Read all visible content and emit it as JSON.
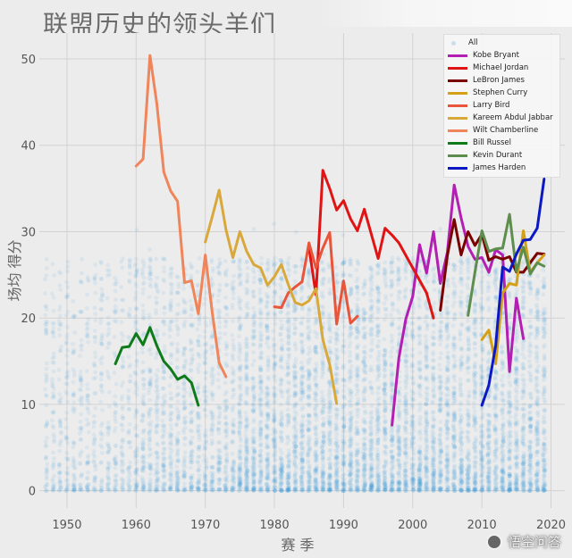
{
  "page": {
    "title": "联盟历史的领头羊们"
  },
  "watermark": {
    "text": "悟空问答"
  },
  "chart_data": {
    "type": "scatter",
    "title": "联盟历史的领头羊们",
    "xlabel": "赛 季",
    "ylabel": "场均 得分",
    "xlim": [
      1946,
      2022
    ],
    "ylim": [
      -2,
      53
    ],
    "xticks": [
      1950,
      1960,
      1970,
      1980,
      1990,
      2000,
      2010,
      2020
    ],
    "yticks": [
      0,
      10,
      20,
      30,
      40,
      50
    ],
    "grid": true,
    "legend_position": "top-right",
    "background_points": {
      "name": "All",
      "color": "#3a9ad9",
      "description": "individual player seasons, dense cloud from 0 to ~30 ppg, 1947–2019"
    },
    "series": [
      {
        "name": "Kobe Bryant",
        "color": "#b31eb3",
        "x": [
          1997,
          1998,
          1999,
          2000,
          2001,
          2002,
          2003,
          2004,
          2005,
          2006,
          2007,
          2008,
          2009,
          2010,
          2011,
          2012,
          2013,
          2014,
          2015,
          2016
        ],
        "y": [
          7.6,
          15.4,
          19.9,
          22.5,
          28.5,
          25.2,
          30.0,
          24.0,
          27.6,
          35.4,
          31.6,
          28.3,
          26.8,
          27.0,
          25.3,
          27.9,
          27.3,
          13.8,
          22.3,
          17.6
        ]
      },
      {
        "name": "Michael Jordan",
        "color": "#e01414",
        "x": [
          1985,
          1986,
          1987,
          1988,
          1989,
          1990,
          1991,
          1992,
          1993,
          1995,
          1996,
          1997,
          1998,
          2002,
          2003
        ],
        "y": [
          28.2,
          22.7,
          37.1,
          35.0,
          32.5,
          33.6,
          31.5,
          30.1,
          32.6,
          26.9,
          30.4,
          29.6,
          28.7,
          22.9,
          20.0
        ]
      },
      {
        "name": "LeBron James",
        "color": "#7a0000",
        "x": [
          2004,
          2005,
          2006,
          2007,
          2008,
          2009,
          2010,
          2011,
          2012,
          2013,
          2014,
          2015,
          2016,
          2017,
          2018,
          2019
        ],
        "y": [
          20.9,
          27.2,
          31.4,
          27.3,
          30.0,
          28.4,
          29.7,
          26.7,
          27.1,
          26.8,
          27.1,
          25.3,
          25.3,
          26.4,
          27.5,
          27.4
        ]
      },
      {
        "name": "Stephen Curry",
        "color": "#d4a018",
        "x": [
          2010,
          2011,
          2012,
          2013,
          2014,
          2015,
          2016,
          2017,
          2018,
          2019
        ],
        "y": [
          17.5,
          18.6,
          14.7,
          22.9,
          24.0,
          23.8,
          30.1,
          25.3,
          26.4,
          27.3
        ]
      },
      {
        "name": "Larry Bird",
        "color": "#e8553a",
        "x": [
          1980,
          1981,
          1982,
          1983,
          1984,
          1985,
          1986,
          1987,
          1988,
          1989,
          1990,
          1991,
          1992
        ],
        "y": [
          21.3,
          21.2,
          22.9,
          23.6,
          24.2,
          28.7,
          25.8,
          28.1,
          29.9,
          19.3,
          24.3,
          19.4,
          20.2
        ]
      },
      {
        "name": "Kareem Abdul Jabbar",
        "color": "#d9a83a",
        "x": [
          1970,
          1971,
          1972,
          1973,
          1974,
          1975,
          1976,
          1977,
          1978,
          1979,
          1980,
          1981,
          1982,
          1983,
          1984,
          1985,
          1986,
          1987,
          1988,
          1989
        ],
        "y": [
          28.8,
          31.7,
          34.8,
          30.2,
          27.0,
          30.0,
          27.7,
          26.2,
          25.8,
          23.8,
          24.8,
          26.2,
          23.9,
          21.8,
          21.5,
          22.0,
          23.4,
          17.5,
          14.6,
          10.1
        ]
      },
      {
        "name": "Wilt Chamberline",
        "color": "#f0845a",
        "x": [
          1960,
          1961,
          1962,
          1963,
          1964,
          1965,
          1966,
          1967,
          1968,
          1969,
          1970,
          1971,
          1972,
          1973
        ],
        "y": [
          37.6,
          38.4,
          50.4,
          44.8,
          36.9,
          34.7,
          33.5,
          24.1,
          24.3,
          20.5,
          27.3,
          20.7,
          14.8,
          13.2
        ]
      },
      {
        "name": "Bill Russel",
        "color": "#0f7a1a",
        "x": [
          1957,
          1958,
          1959,
          1960,
          1961,
          1962,
          1963,
          1964,
          1965,
          1966,
          1967,
          1968,
          1969
        ],
        "y": [
          14.7,
          16.6,
          16.7,
          18.2,
          16.9,
          18.9,
          16.8,
          15.0,
          14.1,
          12.9,
          13.3,
          12.5,
          9.9
        ]
      },
      {
        "name": "Kevin Durant",
        "color": "#5e8e4e",
        "x": [
          2008,
          2009,
          2010,
          2011,
          2012,
          2013,
          2014,
          2015,
          2016,
          2017,
          2018,
          2019
        ],
        "y": [
          20.3,
          25.3,
          30.1,
          27.7,
          28.0,
          28.1,
          32.0,
          25.4,
          28.2,
          25.1,
          26.4,
          26.0
        ]
      },
      {
        "name": "James Harden",
        "color": "#0b18c4",
        "x": [
          2010,
          2011,
          2012,
          2013,
          2014,
          2015,
          2016,
          2017,
          2018,
          2019
        ],
        "y": [
          9.9,
          12.2,
          16.8,
          25.9,
          25.4,
          27.4,
          29.0,
          29.1,
          30.4,
          36.1
        ]
      }
    ]
  }
}
